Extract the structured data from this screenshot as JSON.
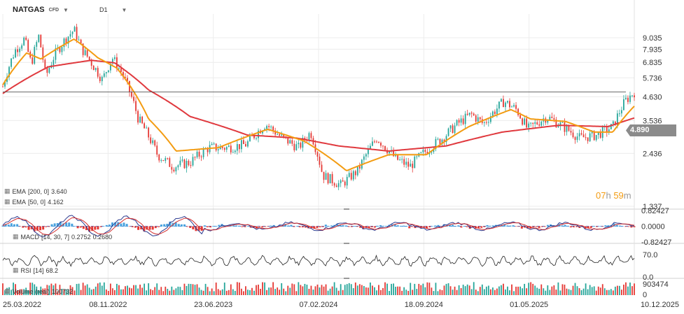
{
  "header": {
    "symbol": "NATGAS",
    "instrument_type": "CFD",
    "timeframe": "D1"
  },
  "current_price": "4.890",
  "countdown": {
    "hours": "07",
    "h_unit": "h",
    "minutes": "59",
    "m_unit": "m"
  },
  "colors": {
    "up": "#26a69a",
    "down": "#e53935",
    "ema200": "#e0393e",
    "ema50": "#f39c12",
    "macd_hist_pos": "#4aa3df",
    "macd_hist_neg": "#e53935",
    "rsi_line": "#222222",
    "price_line": "#555555"
  },
  "legends": {
    "ema200": {
      "label": "EMA",
      "params": "[200,  0]",
      "value": "3.640"
    },
    "ema50": {
      "label": "EMA",
      "params": "[50,  0]",
      "value": "4.162"
    },
    "macd": {
      "label": "MACD",
      "params": "[14, 30, 7]",
      "value1": "0.2752",
      "value2": "0.2680"
    },
    "rsi": {
      "label": "RSI",
      "params": "[14]",
      "value": "68.2"
    },
    "volume": {
      "label": "Volume (real)",
      "value": "100732"
    }
  },
  "icons": {
    "indicator": "grid-icon",
    "dropdown": "chevron-down-icon"
  },
  "chart_data": {
    "type": "candlestick",
    "instrument": "NATGAS",
    "timeframe": "D1",
    "price_axis": {
      "scale": "log",
      "ticks": [
        "9.035",
        "7.935",
        "6.835",
        "5.736",
        "4.630",
        "3.536",
        "2.436",
        "1.337"
      ],
      "range": [
        1.337,
        10.6
      ]
    },
    "x_ticks": [
      "25.03.2022",
      "08.11.2022",
      "23.06.2023",
      "07.02.2024",
      "18.09.2024",
      "01.05.2025",
      "10.12.2025"
    ],
    "close_path": [
      [
        "2022-03-25",
        5.2
      ],
      [
        "2022-04-20",
        7.8
      ],
      [
        "2022-05-10",
        8.9
      ],
      [
        "2022-05-25",
        6.7
      ],
      [
        "2022-06-10",
        9.2
      ],
      [
        "2022-06-25",
        5.8
      ],
      [
        "2022-07-15",
        7.5
      ],
      [
        "2022-08-05",
        8.8
      ],
      [
        "2022-08-25",
        9.9
      ],
      [
        "2022-09-10",
        8.0
      ],
      [
        "2022-10-05",
        6.6
      ],
      [
        "2022-10-25",
        5.6
      ],
      [
        "2022-11-15",
        7.2
      ],
      [
        "2022-12-05",
        6.1
      ],
      [
        "2023-01-10",
        3.6
      ],
      [
        "2023-02-20",
        2.4
      ],
      [
        "2023-03-25",
        2.1
      ],
      [
        "2023-05-01",
        2.2
      ],
      [
        "2023-06-10",
        2.6
      ],
      [
        "2023-07-20",
        2.6
      ],
      [
        "2023-08-30",
        2.7
      ],
      [
        "2023-10-10",
        3.4
      ],
      [
        "2023-11-15",
        2.9
      ],
      [
        "2023-12-20",
        2.6
      ],
      [
        "2024-01-15",
        3.1
      ],
      [
        "2024-02-10",
        1.9
      ],
      [
        "2024-03-20",
        1.7
      ],
      [
        "2024-04-25",
        2.0
      ],
      [
        "2024-06-05",
        2.9
      ],
      [
        "2024-07-15",
        2.3
      ],
      [
        "2024-08-15",
        2.1
      ],
      [
        "2024-09-18",
        2.5
      ],
      [
        "2024-10-25",
        2.9
      ],
      [
        "2024-11-25",
        3.4
      ],
      [
        "2024-12-25",
        3.8
      ],
      [
        "2025-01-20",
        3.4
      ],
      [
        "2025-03-05",
        4.4
      ],
      [
        "2025-04-01",
        4.0
      ],
      [
        "2025-04-25",
        3.2
      ],
      [
        "2025-06-05",
        3.7
      ],
      [
        "2025-07-10",
        3.3
      ],
      [
        "2025-08-15",
        2.9
      ],
      [
        "2025-09-20",
        3.0
      ],
      [
        "2025-10-25",
        3.3
      ],
      [
        "2025-11-20",
        4.4
      ],
      [
        "2025-12-10",
        4.89
      ]
    ],
    "ema200_path": [
      [
        "2022-03-25",
        4.8
      ],
      [
        "2022-07-01",
        6.5
      ],
      [
        "2022-10-01",
        7.0
      ],
      [
        "2022-11-20",
        6.8
      ],
      [
        "2023-02-01",
        5.0
      ],
      [
        "2023-05-01",
        3.7
      ],
      [
        "2023-09-01",
        3.0
      ],
      [
        "2023-12-15",
        2.9
      ],
      [
        "2024-03-15",
        2.65
      ],
      [
        "2024-07-01",
        2.5
      ],
      [
        "2024-11-01",
        2.65
      ],
      [
        "2025-03-01",
        3.1
      ],
      [
        "2025-07-01",
        3.35
      ],
      [
        "2025-10-15",
        3.3
      ],
      [
        "2025-12-10",
        3.64
      ]
    ],
    "ema50_path": [
      [
        "2022-03-25",
        5.3
      ],
      [
        "2022-05-15",
        7.6
      ],
      [
        "2022-06-15",
        7.1
      ],
      [
        "2022-08-25",
        8.9
      ],
      [
        "2022-10-15",
        7.2
      ],
      [
        "2022-11-25",
        6.4
      ],
      [
        "2023-02-01",
        3.6
      ],
      [
        "2023-04-01",
        2.5
      ],
      [
        "2023-07-01",
        2.6
      ],
      [
        "2023-10-15",
        3.2
      ],
      [
        "2024-01-01",
        2.8
      ],
      [
        "2024-04-01",
        2.0
      ],
      [
        "2024-07-01",
        2.4
      ],
      [
        "2024-09-20",
        2.4
      ],
      [
        "2024-12-20",
        3.3
      ],
      [
        "2025-03-20",
        4.0
      ],
      [
        "2025-05-01",
        3.6
      ],
      [
        "2025-07-15",
        3.5
      ],
      [
        "2025-09-15",
        3.1
      ],
      [
        "2025-10-25",
        3.1
      ],
      [
        "2025-12-10",
        4.162
      ]
    ],
    "macd": {
      "axis_ticks": [
        "0.82427",
        "0.0000",
        "-0.82427"
      ],
      "range": [
        -0.82427,
        0.82427
      ],
      "last_line": 0.2752,
      "last_signal": 0.268
    },
    "rsi": {
      "axis_ticks": [
        "70.0",
        "0.0"
      ],
      "range": [
        0,
        100
      ],
      "last": 68.2
    },
    "volume": {
      "axis_ticks": [
        "903474",
        "0"
      ],
      "range": [
        0,
        903474
      ],
      "last": 100732
    }
  }
}
